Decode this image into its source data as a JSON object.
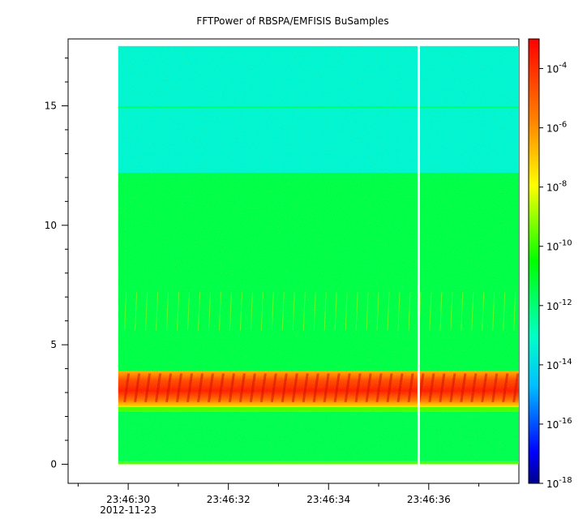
{
  "chart_data": {
    "type": "heatmap",
    "title": "FFTPower of RBSPA/EMFISIS  BuSamples",
    "xlabel": "",
    "ylabel": "",
    "x_date": "2012-11-23",
    "xlim": [
      "23:46:28.8",
      "23:46:37.8"
    ],
    "ylim": [
      -0.8,
      17.8
    ],
    "x_ticks": [
      "23:46:30",
      "23:46:32",
      "23:46:34",
      "23:46:36"
    ],
    "x_minor_ticks": [
      "23:46:29",
      "23:46:31",
      "23:46:33",
      "23:46:35",
      "23:46:37"
    ],
    "y_ticks": [
      0,
      5,
      10,
      15
    ],
    "data_extent": {
      "x": [
        "23:46:29.8",
        "23:46:37.8"
      ],
      "y": [
        0,
        17.5
      ]
    },
    "gap_at": "23:46:35.8",
    "colorbar": {
      "scale": "log",
      "range": [
        1e-18,
        0.001
      ],
      "tick_labels": [
        {
          "base": "10",
          "exp": "-4"
        },
        {
          "base": "10",
          "exp": "-6"
        },
        {
          "base": "10",
          "exp": "-8"
        },
        {
          "base": "10",
          "exp": "-10"
        },
        {
          "base": "10",
          "exp": "-12"
        },
        {
          "base": "10",
          "exp": "-14"
        },
        {
          "base": "10",
          "exp": "-16"
        },
        {
          "base": "10",
          "exp": "-18"
        }
      ],
      "tick_values": [
        -4,
        -6,
        -8,
        -10,
        -12,
        -14,
        -16,
        -18
      ],
      "colormap": [
        "#00008b",
        "#0000ff",
        "#00bfff",
        "#00ffc8",
        "#00ff00",
        "#ffff00",
        "#ff8000",
        "#ff0000"
      ]
    },
    "bands": [
      {
        "y": [
          0,
          0.12
        ],
        "log_power": -8.7
      },
      {
        "y": [
          0.12,
          2.2
        ],
        "log_power": -10.3
      },
      {
        "y": [
          2.2,
          2.4
        ],
        "log_power": -8.8
      },
      {
        "y": [
          2.4,
          3.9
        ],
        "log_power": -5.5
      },
      {
        "y": [
          3.9,
          12.2
        ],
        "log_power": -10.2
      },
      {
        "y": [
          12.2,
          17.5
        ],
        "log_power": -11.9
      }
    ],
    "lines": [
      {
        "y": 14.95,
        "log_power": -10.6
      }
    ]
  }
}
